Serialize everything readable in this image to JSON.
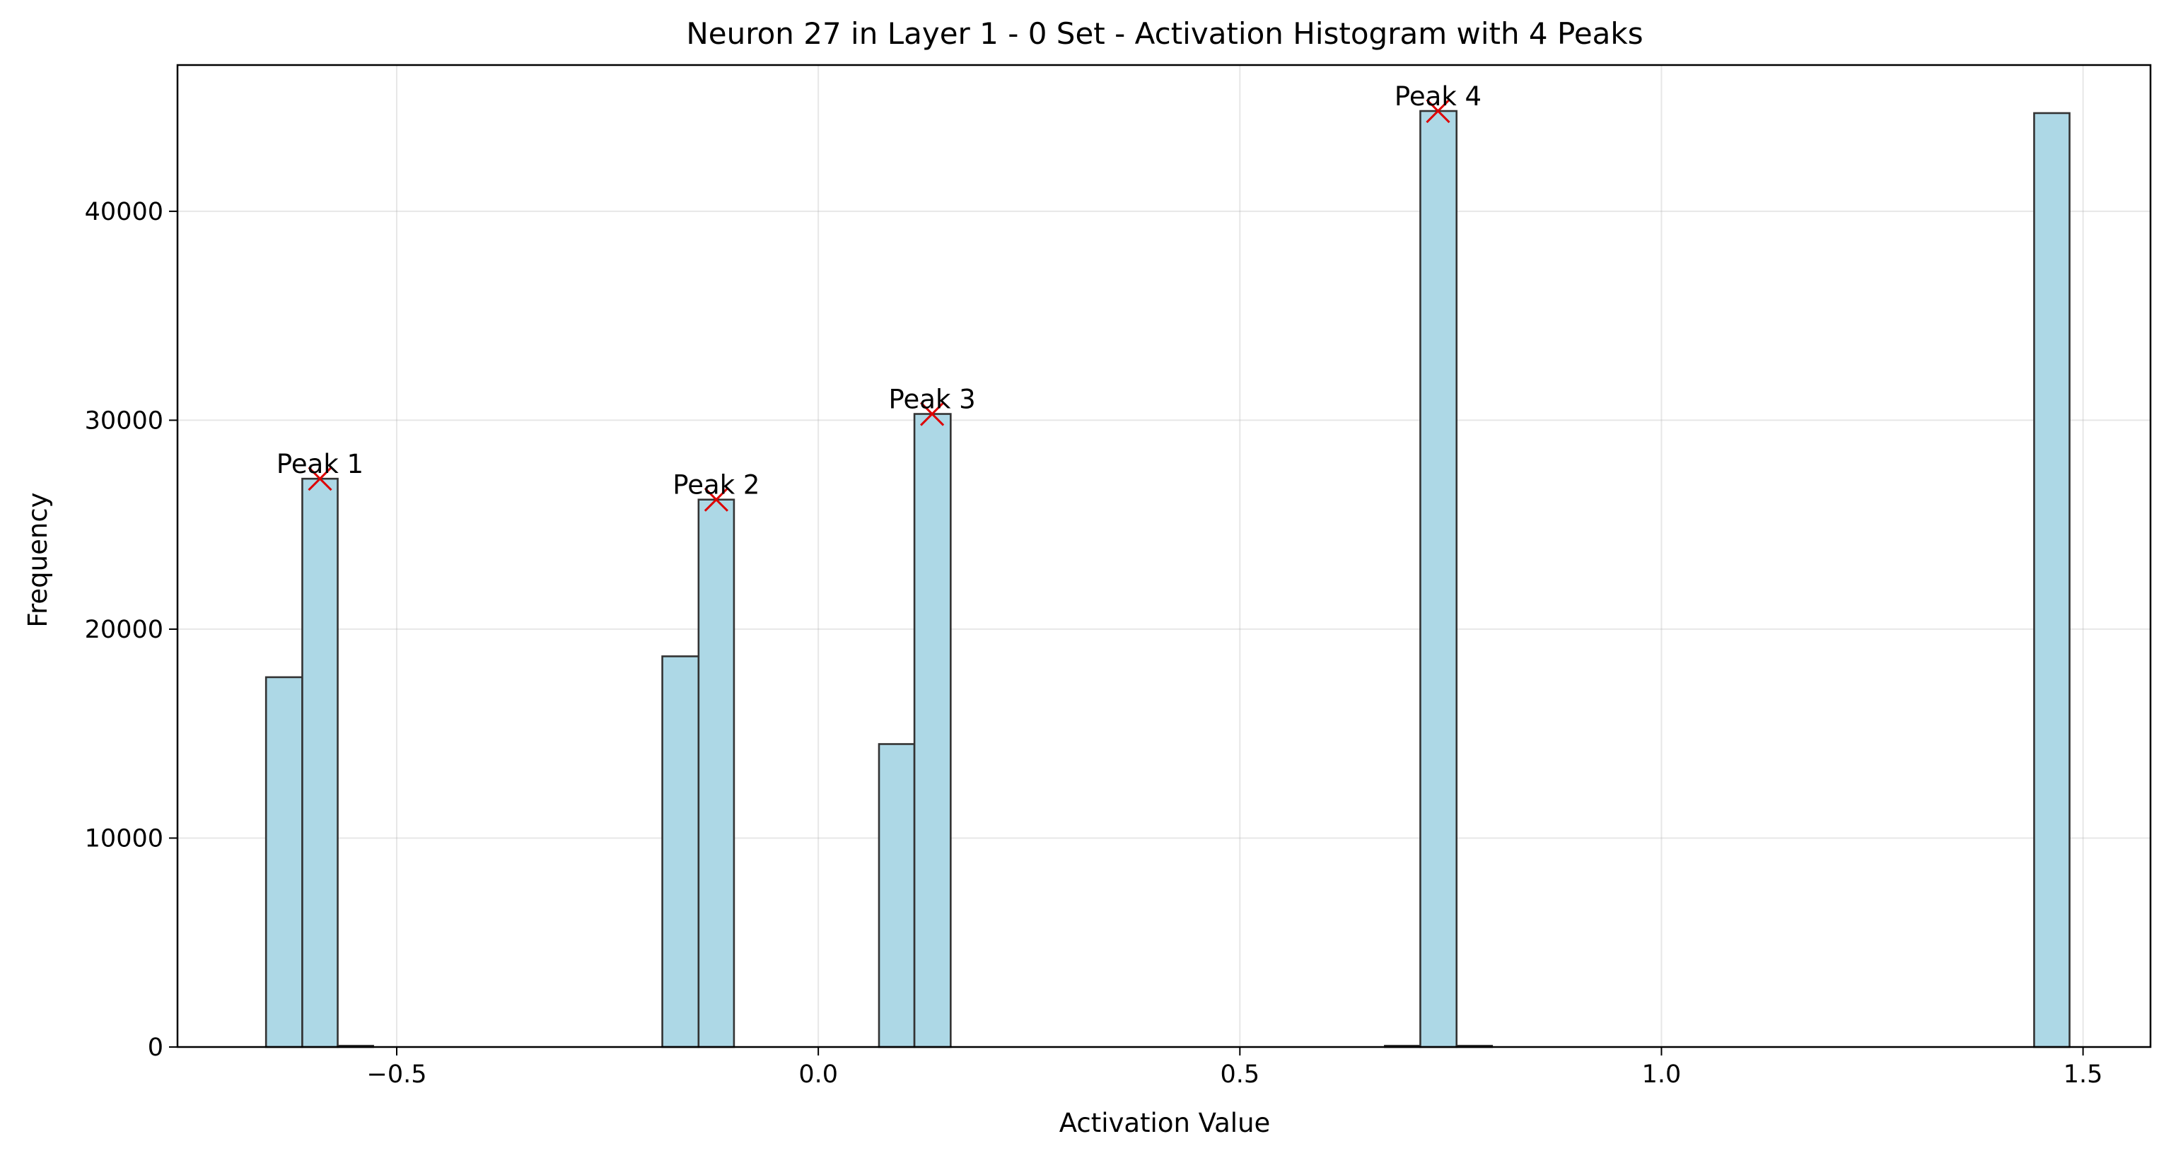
{
  "chart_data": {
    "type": "bar",
    "title": "Neuron 27 in Layer 1 - 0 Set - Activation Histogram with 4 Peaks",
    "xlabel": "Activation Value",
    "ylabel": "Frequency",
    "xlim": [
      -0.76,
      1.58
    ],
    "ylim": [
      0,
      47000
    ],
    "x_ticks": [
      {
        "value": -0.5,
        "label": "−0.5"
      },
      {
        "value": 0.0,
        "label": "0.0"
      },
      {
        "value": 0.5,
        "label": "0.5"
      },
      {
        "value": 1.0,
        "label": "1.0"
      },
      {
        "value": 1.5,
        "label": "1.5"
      }
    ],
    "y_ticks": [
      {
        "value": 0,
        "label": "0"
      },
      {
        "value": 10000,
        "label": "10000"
      },
      {
        "value": 20000,
        "label": "20000"
      },
      {
        "value": 30000,
        "label": "30000"
      },
      {
        "value": 40000,
        "label": "40000"
      }
    ],
    "grid": true,
    "bar_color": "#add8e6",
    "bar_edge_color": "#333333",
    "marker_color": "#dd0000",
    "bins": [
      {
        "x0": -0.655,
        "x1": -0.612,
        "count": 17700
      },
      {
        "x0": -0.612,
        "x1": -0.57,
        "count": 27200
      },
      {
        "x0": -0.57,
        "x1": -0.528,
        "count": 60
      },
      {
        "x0": -0.185,
        "x1": -0.142,
        "count": 18700
      },
      {
        "x0": -0.142,
        "x1": -0.1,
        "count": 26200
      },
      {
        "x0": 0.072,
        "x1": 0.114,
        "count": 14500
      },
      {
        "x0": 0.114,
        "x1": 0.157,
        "count": 30300
      },
      {
        "x0": 0.672,
        "x1": 0.714,
        "count": 60
      },
      {
        "x0": 0.714,
        "x1": 0.757,
        "count": 44800
      },
      {
        "x0": 0.757,
        "x1": 0.799,
        "count": 60
      },
      {
        "x0": 1.442,
        "x1": 1.484,
        "count": 44700
      }
    ],
    "peaks": [
      {
        "label": "Peak 1",
        "x": -0.591,
        "y": 27200
      },
      {
        "label": "Peak 2",
        "x": -0.121,
        "y": 26200
      },
      {
        "label": "Peak 3",
        "x": 0.135,
        "y": 30300
      },
      {
        "label": "Peak 4",
        "x": 0.735,
        "y": 44800
      }
    ]
  }
}
